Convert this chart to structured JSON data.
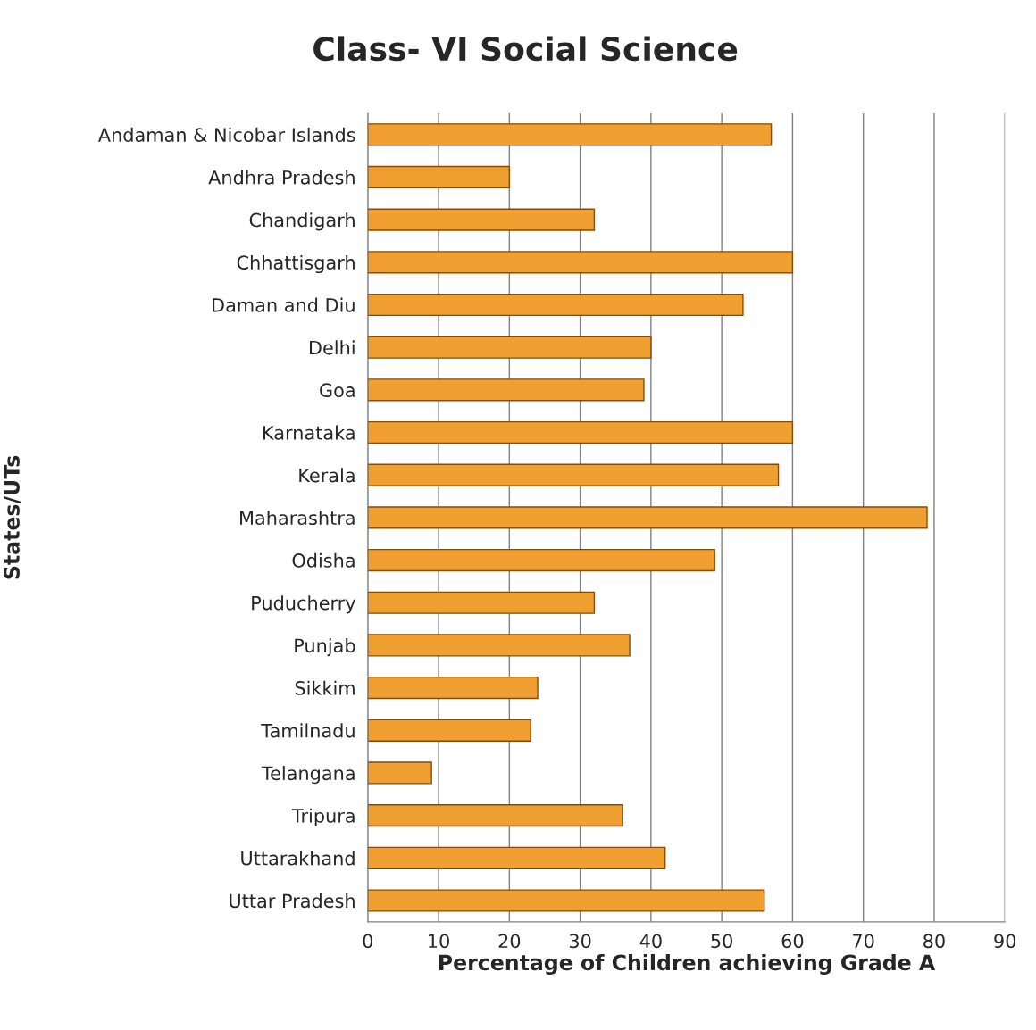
{
  "chart_data": {
    "type": "bar",
    "orientation": "horizontal",
    "title": "Class- VI Social Science",
    "xlabel": "Percentage of Children achieving Grade A",
    "ylabel": "States/UTs",
    "categories": [
      "Andaman & Nicobar Islands",
      "Andhra Pradesh",
      "Chandigarh",
      "Chhattisgarh",
      "Daman and Diu",
      "Delhi",
      "Goa",
      "Karnataka",
      "Kerala",
      "Maharashtra",
      "Odisha",
      "Puducherry",
      "Punjab",
      "Sikkim",
      "Tamilnadu",
      "Telangana",
      "Tripura",
      "Uttarakhand",
      "Uttar Pradesh"
    ],
    "values": [
      57,
      20,
      32,
      60,
      53,
      40,
      39,
      60,
      58,
      79,
      49,
      32,
      37,
      24,
      23,
      9,
      36,
      42,
      56
    ],
    "color": "#f0a030",
    "xlim": [
      0,
      90
    ],
    "xticks": [
      0,
      10,
      20,
      30,
      40,
      50,
      60,
      70,
      80,
      90
    ],
    "grid": "x"
  }
}
